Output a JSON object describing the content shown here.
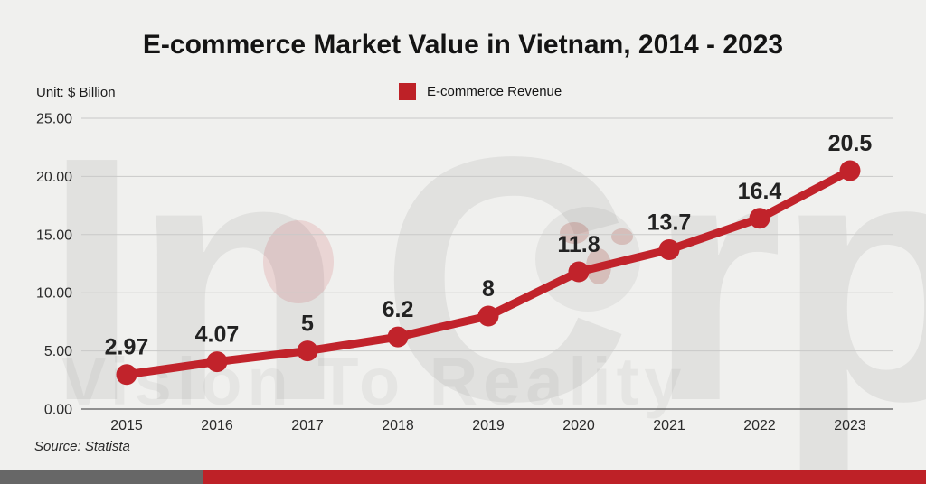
{
  "header": {
    "title": "E-commerce Market Value in Vietnam, 2014 - 2023",
    "unit_label": "Unit: $ Billion",
    "legend": {
      "label": "E-commerce Revenue",
      "swatch_color": "#be2127"
    }
  },
  "chart_data": {
    "type": "line",
    "title": "E-commerce Market Value in Vietnam, 2014 - 2023",
    "unit": "$ Billion",
    "categories": [
      "2015",
      "2016",
      "2017",
      "2018",
      "2019",
      "2020",
      "2021",
      "2022",
      "2023"
    ],
    "series": [
      {
        "name": "E-commerce Revenue",
        "values": [
          2.97,
          4.07,
          5,
          6.2,
          8,
          11.8,
          13.7,
          16.4,
          20.5
        ],
        "color": "#c1232b"
      }
    ],
    "data_labels": [
      "2.97",
      "4.07",
      "5",
      "6.2",
      "8",
      "11.8",
      "13.7",
      "16.4",
      "20.5"
    ],
    "y_ticks": [
      "25.00",
      "20.00",
      "15.00",
      "10.00",
      "5.00",
      "0.00"
    ],
    "ylim": [
      0,
      25
    ],
    "xlabel": "",
    "ylabel": "$ Billion",
    "grid": true,
    "legend_position": "top-center"
  },
  "watermark": {
    "part_in": "In",
    "part_c": "C",
    "part_rp": "rp",
    "tagline": "Vision To Reality"
  },
  "footer": {
    "source": "Source: Statista",
    "bar_gray_color": "#676767",
    "bar_red_color": "#be2127"
  }
}
